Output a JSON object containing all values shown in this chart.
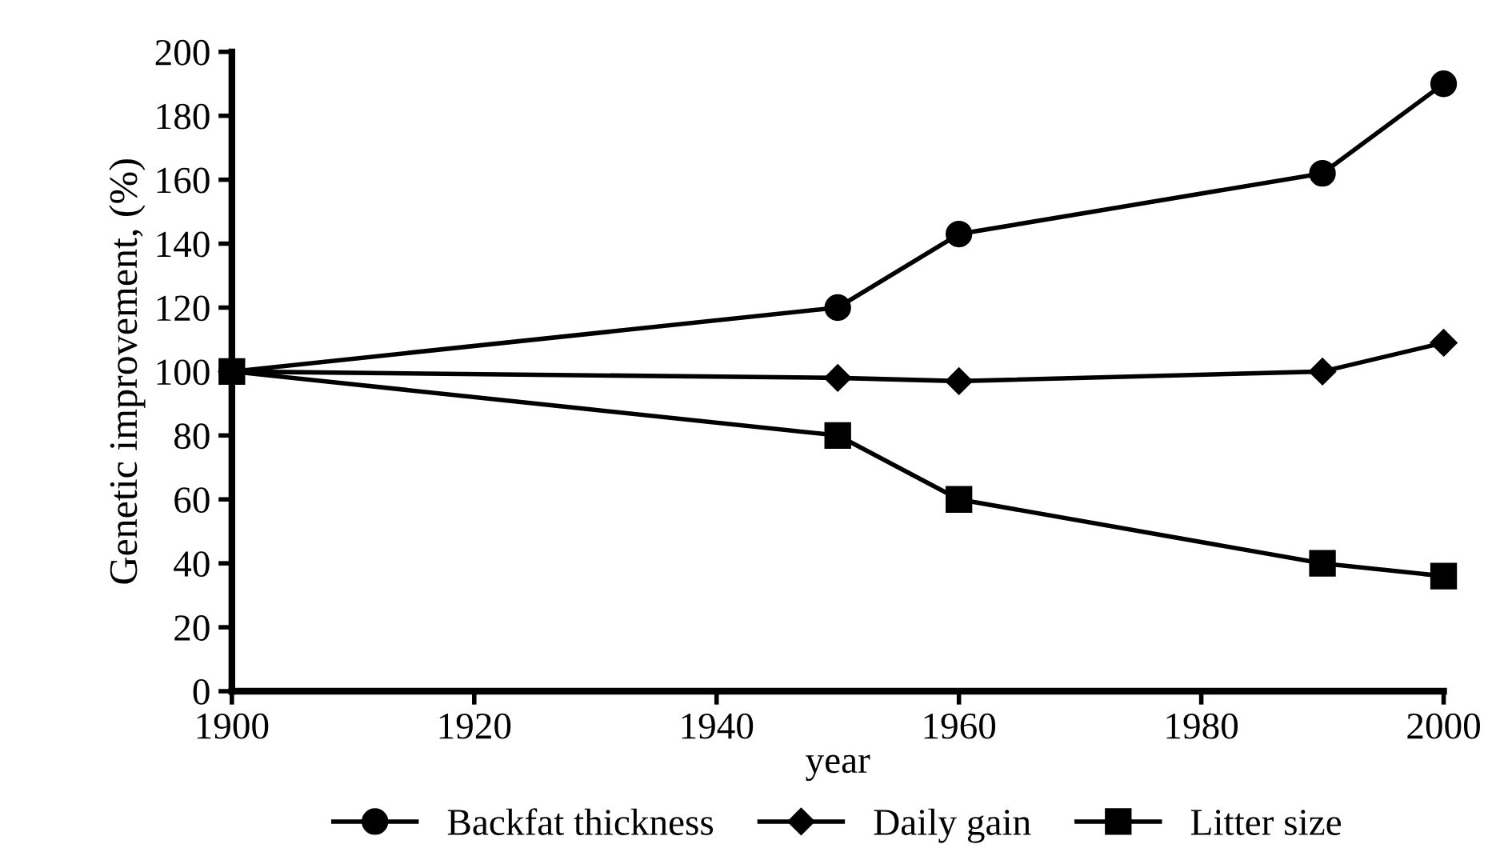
{
  "chart_data": {
    "type": "line",
    "xlabel": "year",
    "ylabel": "Genetic improvement, (%)",
    "xlim": [
      1900,
      2000
    ],
    "xticks": [
      1900,
      1920,
      1940,
      1960,
      1980,
      2000
    ],
    "ylim": [
      0,
      200
    ],
    "yticks": [
      0,
      20,
      40,
      60,
      80,
      100,
      120,
      140,
      160,
      180,
      200
    ],
    "grid": false,
    "legend": "bottom",
    "series": [
      {
        "name": "Backfat thickness",
        "color": "#000000",
        "marker": "circle",
        "x": [
          1900,
          1950,
          1960,
          1990,
          2000
        ],
        "values": [
          100,
          120,
          143,
          162,
          190
        ]
      },
      {
        "name": "Daily gain",
        "color": "#000000",
        "marker": "diamond",
        "x": [
          1900,
          1950,
          1960,
          1990,
          2000
        ],
        "values": [
          100,
          98,
          97,
          100,
          109
        ]
      },
      {
        "name": "Litter size",
        "color": "#000000",
        "marker": "square",
        "x": [
          1900,
          1950,
          1960,
          1990,
          2000
        ],
        "values": [
          100,
          80,
          60,
          40,
          36
        ]
      }
    ]
  }
}
